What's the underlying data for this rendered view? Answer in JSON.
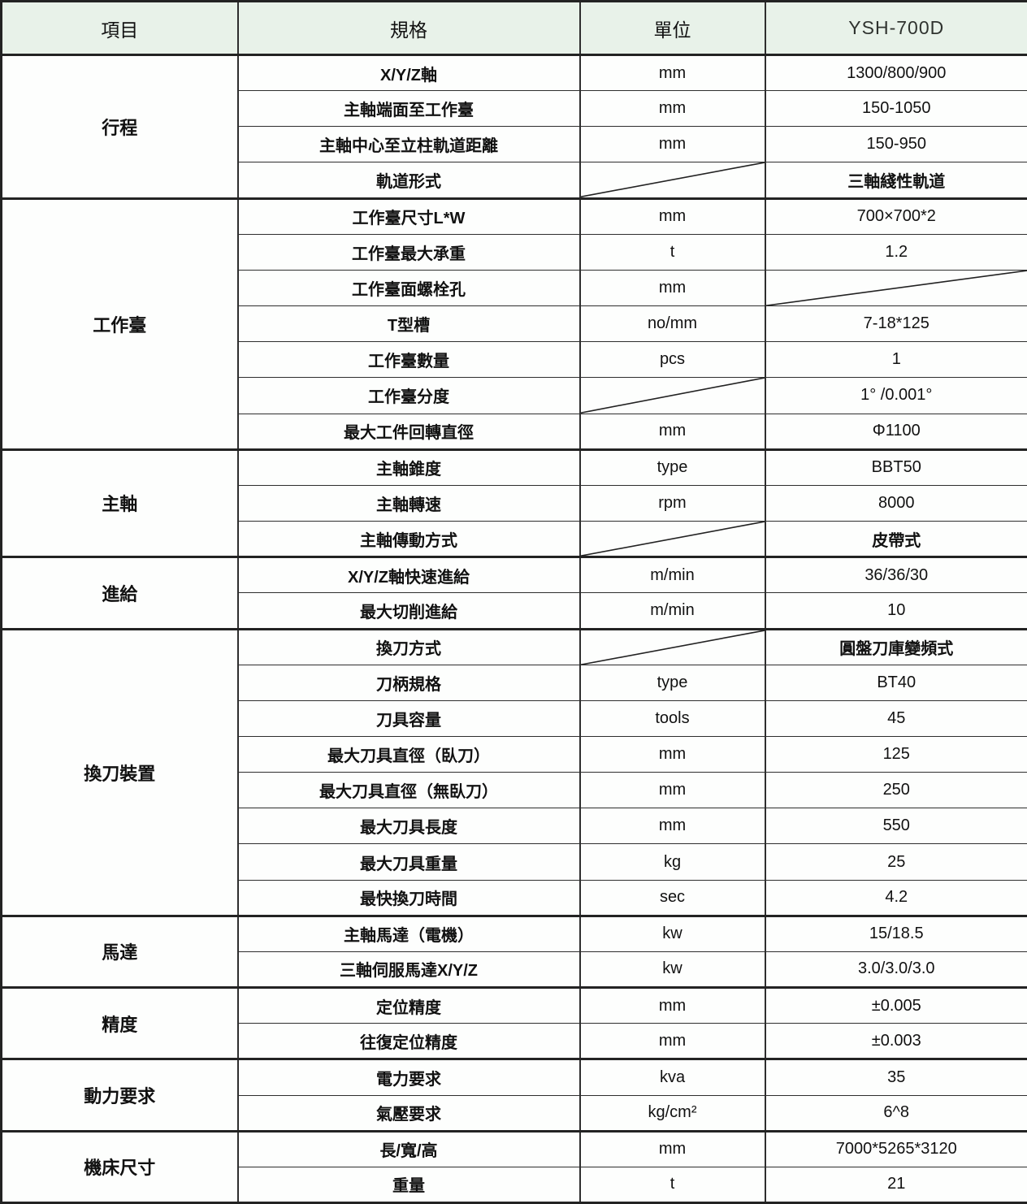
{
  "table": {
    "columns": [
      "項目",
      "規格",
      "單位",
      "YSH-700D"
    ],
    "sections": [
      {
        "name": "行程",
        "rows": [
          {
            "spec": "X/Y/Z軸",
            "unit": "mm",
            "value": "1300/800/900"
          },
          {
            "spec": "主軸端面至工作臺",
            "unit": "mm",
            "value": "150-1050"
          },
          {
            "spec": "主軸中心至立柱軌道距離",
            "unit": "mm",
            "value": "150-950"
          },
          {
            "spec": "軌道形式",
            "unit": "",
            "unit_na": true,
            "value": "三軸綫性軌道"
          }
        ]
      },
      {
        "name": "工作臺",
        "rows": [
          {
            "spec": "工作臺尺寸L*W",
            "unit": "mm",
            "value": "700×700*2"
          },
          {
            "spec": "工作臺最大承重",
            "unit": "t",
            "value": "1.2"
          },
          {
            "spec": "工作臺面螺栓孔",
            "unit": "mm",
            "value": "",
            "value_na": true
          },
          {
            "spec": "T型槽",
            "unit": "no/mm",
            "value": "7-18*125"
          },
          {
            "spec": "工作臺數量",
            "unit": "pcs",
            "value": "1"
          },
          {
            "spec": "工作臺分度",
            "unit": "",
            "unit_na": true,
            "value": "1° /0.001°"
          },
          {
            "spec": "最大工件回轉直徑",
            "unit": "mm",
            "value": "Φ1100"
          }
        ]
      },
      {
        "name": "主軸",
        "rows": [
          {
            "spec": "主軸錐度",
            "unit": "type",
            "value": "BBT50"
          },
          {
            "spec": "主軸轉速",
            "unit": "rpm",
            "value": "8000"
          },
          {
            "spec": "主軸傳動方式",
            "unit": "",
            "unit_na": true,
            "value": "皮帶式"
          }
        ]
      },
      {
        "name": "進給",
        "rows": [
          {
            "spec": "X/Y/Z軸快速進給",
            "unit": "m/min",
            "value": "36/36/30"
          },
          {
            "spec": "最大切削進給",
            "unit": "m/min",
            "value": "10"
          }
        ]
      },
      {
        "name": "換刀裝置",
        "rows": [
          {
            "spec": "換刀方式",
            "unit": "",
            "unit_na": true,
            "value": "圓盤刀庫變頻式"
          },
          {
            "spec": "刀柄規格",
            "unit": "type",
            "value": "BT40"
          },
          {
            "spec": "刀具容量",
            "unit": "tools",
            "value": "45"
          },
          {
            "spec": "最大刀具直徑（臥刀）",
            "unit": "mm",
            "value": "125"
          },
          {
            "spec": "最大刀具直徑（無臥刀）",
            "unit": "mm",
            "value": "250"
          },
          {
            "spec": "最大刀具長度",
            "unit": "mm",
            "value": "550"
          },
          {
            "spec": "最大刀具重量",
            "unit": "kg",
            "value": "25"
          },
          {
            "spec": "最快換刀時間",
            "unit": "sec",
            "value": "4.2"
          }
        ]
      },
      {
        "name": "馬達",
        "rows": [
          {
            "spec": "主軸馬達（電機）",
            "unit": "kw",
            "value": "15/18.5"
          },
          {
            "spec": "三軸伺服馬達X/Y/Z",
            "unit": "kw",
            "value": "3.0/3.0/3.0"
          }
        ]
      },
      {
        "name": "精度",
        "rows": [
          {
            "spec": "定位精度",
            "unit": "mm",
            "value": "±0.005"
          },
          {
            "spec": "往復定位精度",
            "unit": "mm",
            "value": "±0.003"
          }
        ]
      },
      {
        "name": "動力要求",
        "rows": [
          {
            "spec": "電力要求",
            "unit": "kva",
            "value": "35"
          },
          {
            "spec": "氣壓要求",
            "unit": "kg/cm²",
            "value": "6^8"
          }
        ]
      },
      {
        "name": "機床尺寸",
        "rows": [
          {
            "spec": "長/寬/高",
            "unit": "mm",
            "value": "7000*5265*3120"
          },
          {
            "spec": "重量",
            "unit": "t",
            "value": "21"
          }
        ]
      }
    ]
  },
  "colors": {
    "header_bg": "#e8f2e9",
    "body_bg": "#fdfefd",
    "border": "#2e2e2e",
    "text": "#111111"
  }
}
